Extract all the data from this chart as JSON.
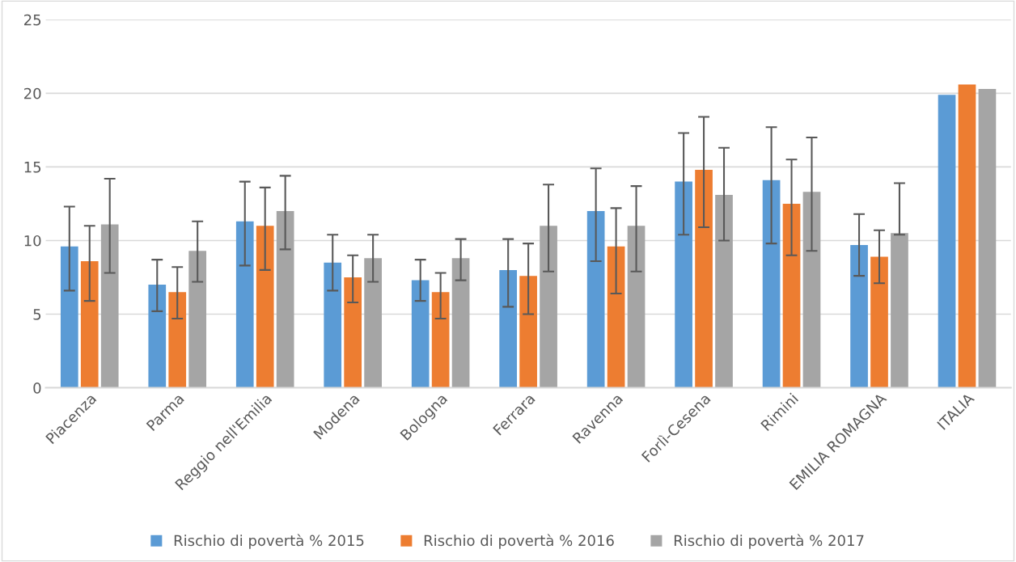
{
  "chart_data": {
    "type": "bar",
    "categories": [
      "Piacenza",
      "Parma",
      "Reggio nell'Emilia",
      "Modena",
      "Bologna",
      "Ferrara",
      "Ravenna",
      "Forlì-Cesena",
      "Rimini",
      "EMILIA ROMAGNA",
      "ITALIA"
    ],
    "series": [
      {
        "name": "Rischio di povertà % 2015",
        "color": "#5b9bd5",
        "values": [
          9.6,
          7.0,
          11.3,
          8.5,
          7.3,
          8.0,
          12.0,
          14.0,
          14.1,
          9.7,
          19.9
        ],
        "errors": [
          [
            6.6,
            12.3
          ],
          [
            5.2,
            8.7
          ],
          [
            8.3,
            14.0
          ],
          [
            6.6,
            10.4
          ],
          [
            5.9,
            8.7
          ],
          [
            5.5,
            10.1
          ],
          [
            8.6,
            14.9
          ],
          [
            10.4,
            17.3
          ],
          [
            9.8,
            17.7
          ],
          [
            7.6,
            11.8
          ],
          null
        ]
      },
      {
        "name": "Rischio di povertà % 2016",
        "color": "#ed7d31",
        "values": [
          8.6,
          6.5,
          11.0,
          7.5,
          6.5,
          7.6,
          9.6,
          14.8,
          12.5,
          8.9,
          20.6
        ],
        "errors": [
          [
            5.9,
            11.0
          ],
          [
            4.7,
            8.2
          ],
          [
            8.0,
            13.6
          ],
          [
            5.8,
            9.0
          ],
          [
            4.7,
            7.8
          ],
          [
            5.0,
            9.8
          ],
          [
            6.4,
            12.2
          ],
          [
            10.9,
            18.4
          ],
          [
            9.0,
            15.5
          ],
          [
            7.1,
            10.7
          ],
          null
        ]
      },
      {
        "name": "Rischio di povertà % 2017",
        "color": "#a5a5a5",
        "values": [
          11.1,
          9.3,
          12.0,
          8.8,
          8.8,
          11.0,
          11.0,
          13.1,
          13.3,
          10.5,
          20.3
        ],
        "errors": [
          [
            7.8,
            14.2
          ],
          [
            7.2,
            11.3
          ],
          [
            9.4,
            14.4
          ],
          [
            7.2,
            10.4
          ],
          [
            7.3,
            10.1
          ],
          [
            7.9,
            13.8
          ],
          [
            7.9,
            13.7
          ],
          [
            10.0,
            16.3
          ],
          [
            9.3,
            17.0
          ],
          [
            10.4,
            13.9
          ],
          null
        ]
      }
    ],
    "ylim": [
      0,
      25
    ],
    "yticks": [
      0,
      5,
      10,
      15,
      20,
      25
    ],
    "grid": "y",
    "legend": "bottom"
  }
}
